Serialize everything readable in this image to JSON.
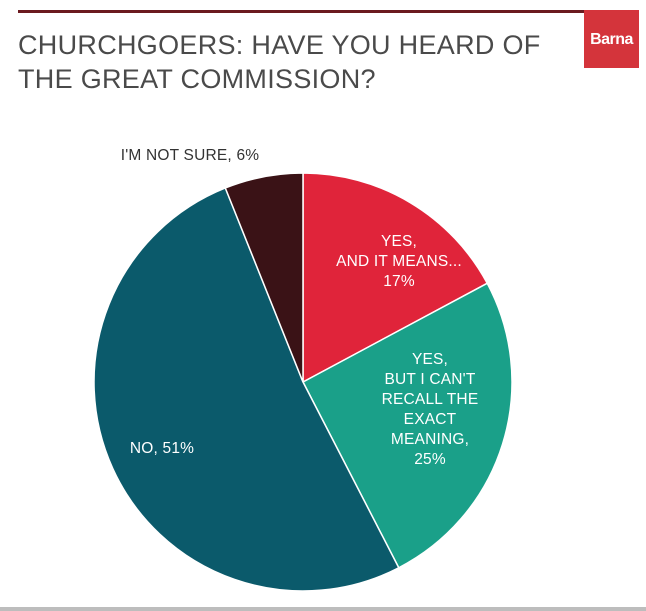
{
  "brand": {
    "logo_text": "Barna",
    "logo_color": "#d4343b",
    "rule_color": "#6b1a1f"
  },
  "chart_data": {
    "type": "pie",
    "title": "CHURCHGOERS: HAVE YOU HEARD OF THE GREAT COMMISSION?",
    "start_angle_deg": 0,
    "direction": "clockwise",
    "slices": [
      {
        "label": "YES, AND IT MEANS... 17%",
        "label_lines": [
          "YES,",
          "AND IT MEANS...",
          "17%"
        ],
        "value": 17,
        "color": "#e0243a",
        "label_color": "#ffffff",
        "label_position": "inside"
      },
      {
        "label": "YES, BUT I CAN'T RECALL THE EXACT MEANING, 25%",
        "label_lines": [
          "YES,",
          "BUT I CAN'T",
          "RECALL THE",
          "EXACT",
          "MEANING,",
          "25%"
        ],
        "value": 25,
        "color": "#1aa089",
        "label_color": "#ffffff",
        "label_position": "inside"
      },
      {
        "label": "NO, 51%",
        "label_lines": [
          "NO, 51%"
        ],
        "value": 51,
        "color": "#0b5a6b",
        "label_color": "#ffffff",
        "label_position": "inside"
      },
      {
        "label": "I'M NOT SURE, 6%",
        "label_lines": [
          "I'M NOT SURE, 6%"
        ],
        "value": 6,
        "color": "#3a1216",
        "label_color": "#333333",
        "label_position": "outside"
      }
    ]
  }
}
